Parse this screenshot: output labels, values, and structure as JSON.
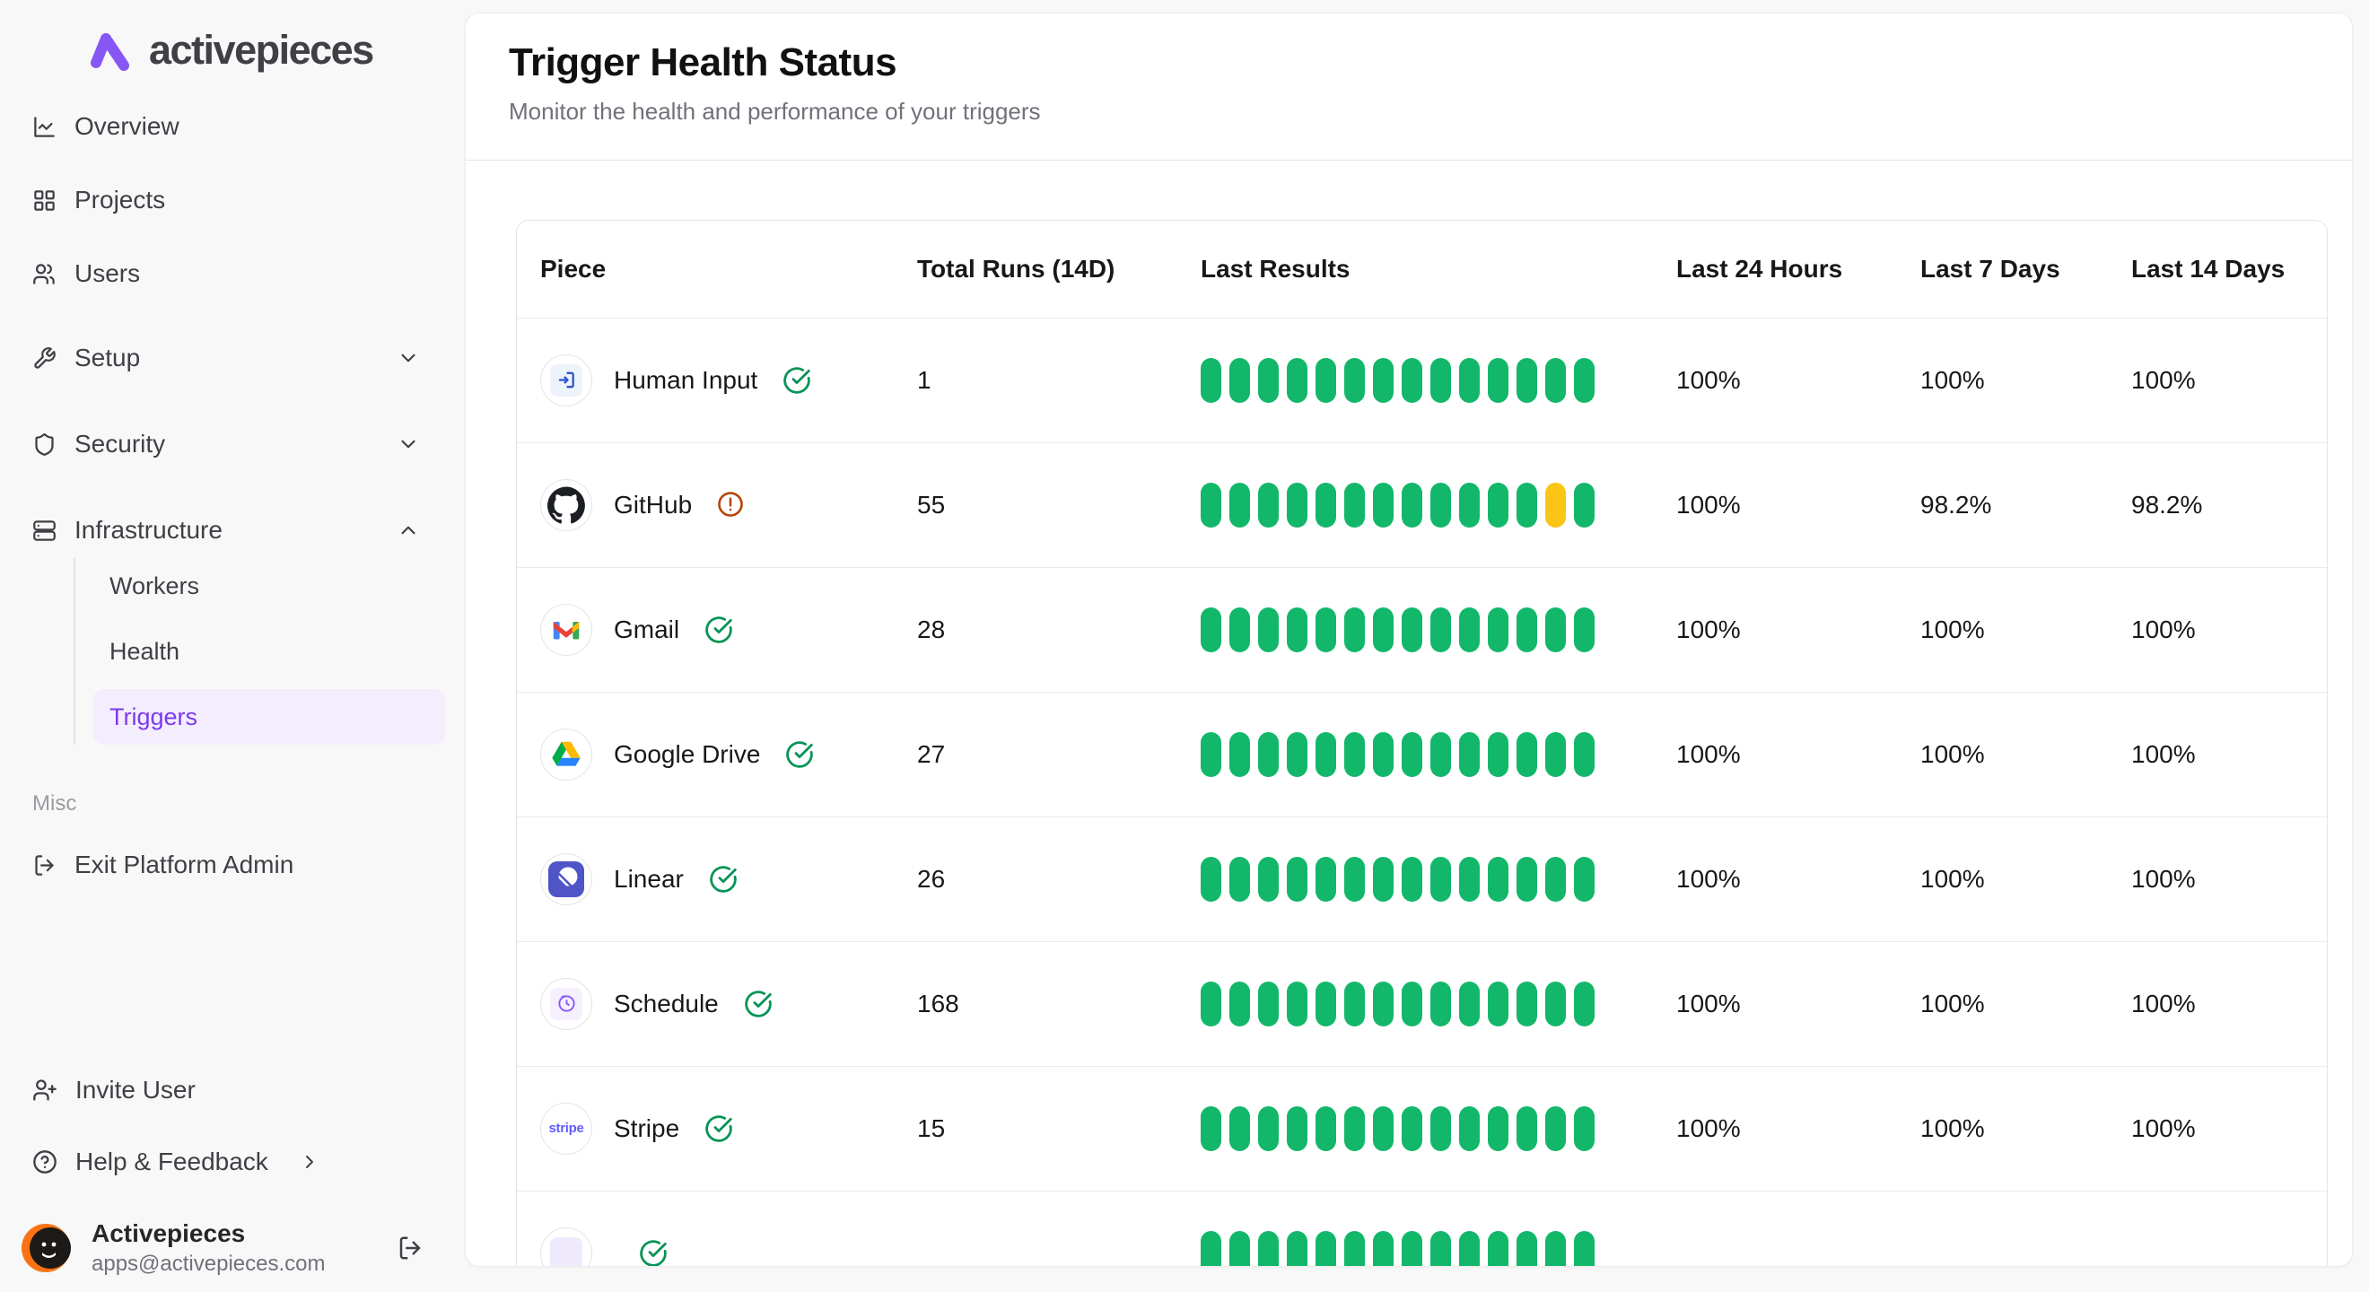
{
  "brand": {
    "name": "activepieces"
  },
  "sidebar": {
    "items": [
      {
        "label": "Overview",
        "icon": "chart-icon"
      },
      {
        "label": "Projects",
        "icon": "grid-icon"
      },
      {
        "label": "Users",
        "icon": "users-icon"
      },
      {
        "label": "Setup",
        "icon": "wrench-icon",
        "chevron": "down"
      },
      {
        "label": "Security",
        "icon": "shield-icon",
        "chevron": "down"
      },
      {
        "label": "Infrastructure",
        "icon": "server-icon",
        "chevron": "up"
      }
    ],
    "sub_items": [
      {
        "label": "Workers",
        "active": false
      },
      {
        "label": "Health",
        "active": false
      },
      {
        "label": "Triggers",
        "active": true
      }
    ],
    "misc_label": "Misc",
    "exit_label": "Exit Platform Admin",
    "invite_label": "Invite User",
    "help_label": "Help & Feedback",
    "profile": {
      "name": "Activepieces",
      "email": "apps@activepieces.com"
    }
  },
  "header": {
    "title": "Trigger Health Status",
    "subtitle": "Monitor the health and performance of your triggers"
  },
  "table": {
    "columns": [
      "Piece",
      "Total Runs (14D)",
      "Last Results",
      "Last 24 Hours",
      "Last 7 Days",
      "Last 14 Days"
    ],
    "rows": [
      {
        "piece": "Human Input",
        "icon": "human-input-icon",
        "status": "ok",
        "runs": "1",
        "h24": "100%",
        "d7": "100%",
        "d14": "100%",
        "bars": [
          "green",
          "green",
          "green",
          "green",
          "green",
          "green",
          "green",
          "green",
          "green",
          "green",
          "green",
          "green",
          "green",
          "green"
        ]
      },
      {
        "piece": "GitHub",
        "icon": "github-icon",
        "status": "warning",
        "runs": "55",
        "h24": "100%",
        "d7": "98.2%",
        "d14": "98.2%",
        "bars": [
          "green",
          "green",
          "green",
          "green",
          "green",
          "green",
          "green",
          "green",
          "green",
          "green",
          "green",
          "green",
          "yellow",
          "green"
        ]
      },
      {
        "piece": "Gmail",
        "icon": "gmail-icon",
        "status": "ok",
        "runs": "28",
        "h24": "100%",
        "d7": "100%",
        "d14": "100%",
        "bars": [
          "green",
          "green",
          "green",
          "green",
          "green",
          "green",
          "green",
          "green",
          "green",
          "green",
          "green",
          "green",
          "green",
          "green"
        ]
      },
      {
        "piece": "Google Drive",
        "icon": "google-drive-icon",
        "status": "ok",
        "runs": "27",
        "h24": "100%",
        "d7": "100%",
        "d14": "100%",
        "bars": [
          "green",
          "green",
          "green",
          "green",
          "green",
          "green",
          "green",
          "green",
          "green",
          "green",
          "green",
          "green",
          "green",
          "green"
        ]
      },
      {
        "piece": "Linear",
        "icon": "linear-icon",
        "status": "ok",
        "runs": "26",
        "h24": "100%",
        "d7": "100%",
        "d14": "100%",
        "bars": [
          "green",
          "green",
          "green",
          "green",
          "green",
          "green",
          "green",
          "green",
          "green",
          "green",
          "green",
          "green",
          "green",
          "green"
        ]
      },
      {
        "piece": "Schedule",
        "icon": "schedule-icon",
        "status": "ok",
        "runs": "168",
        "h24": "100%",
        "d7": "100%",
        "d14": "100%",
        "bars": [
          "green",
          "green",
          "green",
          "green",
          "green",
          "green",
          "green",
          "green",
          "green",
          "green",
          "green",
          "green",
          "green",
          "green"
        ]
      },
      {
        "piece": "Stripe",
        "icon": "stripe-icon",
        "status": "ok",
        "runs": "15",
        "h24": "100%",
        "d7": "100%",
        "d14": "100%",
        "bars": [
          "green",
          "green",
          "green",
          "green",
          "green",
          "green",
          "green",
          "green",
          "green",
          "green",
          "green",
          "green",
          "green",
          "green"
        ]
      },
      {
        "piece": "",
        "icon": "ghost-piece-icon",
        "status": "ok",
        "runs": "",
        "h24": "",
        "d7": "",
        "d14": "",
        "bars": [
          "green",
          "green",
          "green",
          "green",
          "green",
          "green",
          "green",
          "green",
          "green",
          "green",
          "green",
          "green",
          "green",
          "green"
        ]
      }
    ]
  },
  "colors": {
    "brand_purple": "#8757F6",
    "active_purple": "#7C3AED",
    "active_bg": "#F3EDFD",
    "bar_green": "#12B76A",
    "bar_yellow": "#FAC515",
    "status_ok_green": "#079455",
    "status_warning_amber": "#B54708",
    "page_background": "#F8F8F8"
  }
}
